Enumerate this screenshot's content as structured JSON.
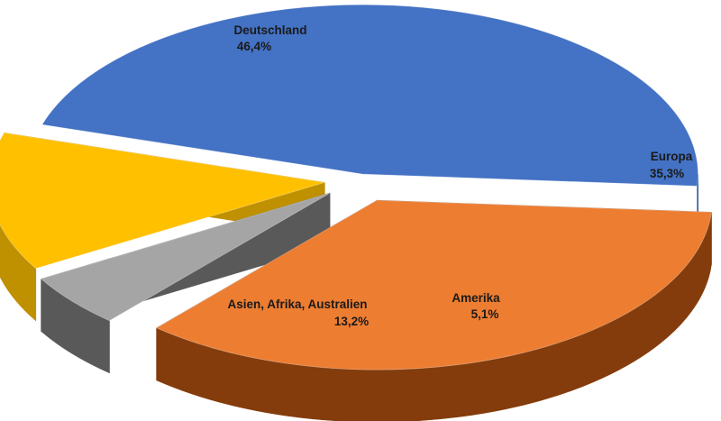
{
  "chart_data": {
    "type": "pie",
    "title": "",
    "style": "3d-exploded",
    "categories": [
      "Deutschland",
      "Europa",
      "Amerika",
      "Asien, Afrika, Australien"
    ],
    "values": [
      46.4,
      35.3,
      5.1,
      13.2
    ],
    "value_labels": [
      "46,4%",
      "35,3%",
      "5,1%",
      "13,2%"
    ],
    "colors": [
      "#4472C4",
      "#ED7D31",
      "#A5A5A5",
      "#FFC000"
    ],
    "side_colors": [
      "#2F5597",
      "#843C0C",
      "#595959",
      "#BF9000"
    ],
    "legend": "none",
    "data_labels": "on-slices"
  }
}
